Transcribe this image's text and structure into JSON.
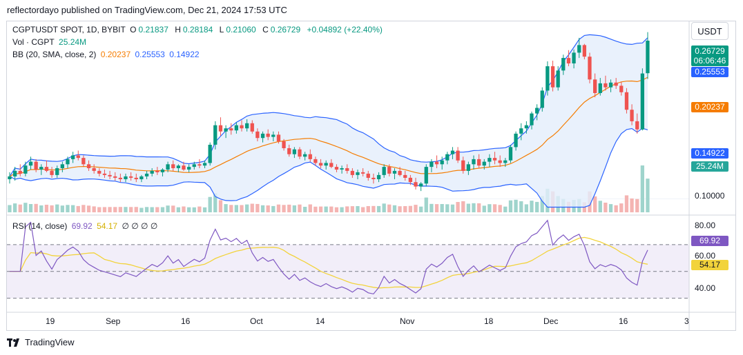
{
  "header": {
    "caption": "reflectordayo published on TradingView.com, Dec 21, 2024 17:53 UTC"
  },
  "legend": {
    "symbol": "CGPTUSDT SPOT, 1D, BYBIT",
    "o_label": "O",
    "o_value": "0.21837",
    "h_label": "H",
    "h_value": "0.28184",
    "l_label": "L",
    "l_value": "0.21060",
    "c_label": "C",
    "c_value": "0.26729",
    "change": "+0.04892 (+22.40%)",
    "vol_label": "Vol · CGPT",
    "vol_value": "25.24M",
    "bb_label": "BB (20, SMA, close, 2)",
    "bb_basis": "0.20237",
    "bb_upper": "0.25553",
    "bb_lower": "0.14922"
  },
  "rsi_legend": {
    "label": "RSI (14, close)",
    "rsi_value": "69.92",
    "ma_value": "54.17",
    "extra": "∅ ∅ ∅ ∅"
  },
  "right_axis": {
    "currency": "USDT",
    "last_price": "0.26729",
    "countdown": "06:06:46",
    "bb_upper_tag": "0.25553",
    "bb_basis_tag": "0.20237",
    "bb_lower_tag": "0.14922",
    "volume_tag": "25.24M",
    "price_tick": "0.10000",
    "rsi_ticks": [
      "80.00",
      "60.00",
      "40.00"
    ],
    "rsi_tag": "69.92",
    "rsi_ma_tag": "54.17"
  },
  "time_axis": [
    "19",
    "Sep",
    "16",
    "Oct",
    "14",
    "Nov",
    "18",
    "Dec",
    "16",
    "3"
  ],
  "footer": {
    "brand": "TradingView"
  },
  "colors": {
    "up": "#089981",
    "up_light": "#26a69a",
    "down": "#ef5350",
    "down_light": "#f28b8b",
    "bb_band": "#2962ff",
    "bb_basis": "#f57c00",
    "bb_fill": "#e3eefb",
    "rsi_line": "#7e57c2",
    "rsi_ma": "#f2d33b",
    "rsi_fill": "#ede7f6"
  },
  "chart_data": {
    "type": "candlestick",
    "symbol": "CGPTUSDT",
    "interval": "1D",
    "y_scale": "log",
    "price_ticks": [
      0.1
    ],
    "rsi_ylim": [
      20,
      90
    ],
    "rsi_bands": [
      70,
      50,
      30
    ],
    "candles": [
      {
        "o": 0.113,
        "h": 0.118,
        "l": 0.11,
        "c": 0.115
      },
      {
        "o": 0.115,
        "h": 0.122,
        "l": 0.112,
        "c": 0.119
      },
      {
        "o": 0.119,
        "h": 0.124,
        "l": 0.115,
        "c": 0.117
      },
      {
        "o": 0.117,
        "h": 0.126,
        "l": 0.115,
        "c": 0.123
      },
      {
        "o": 0.123,
        "h": 0.13,
        "l": 0.12,
        "c": 0.126
      },
      {
        "o": 0.126,
        "h": 0.128,
        "l": 0.118,
        "c": 0.12
      },
      {
        "o": 0.12,
        "h": 0.124,
        "l": 0.116,
        "c": 0.122
      },
      {
        "o": 0.122,
        "h": 0.127,
        "l": 0.118,
        "c": 0.119
      },
      {
        "o": 0.119,
        "h": 0.122,
        "l": 0.114,
        "c": 0.116
      },
      {
        "o": 0.116,
        "h": 0.123,
        "l": 0.114,
        "c": 0.121
      },
      {
        "o": 0.121,
        "h": 0.126,
        "l": 0.118,
        "c": 0.124
      },
      {
        "o": 0.124,
        "h": 0.13,
        "l": 0.121,
        "c": 0.128
      },
      {
        "o": 0.128,
        "h": 0.134,
        "l": 0.125,
        "c": 0.131
      },
      {
        "o": 0.131,
        "h": 0.135,
        "l": 0.127,
        "c": 0.129
      },
      {
        "o": 0.129,
        "h": 0.131,
        "l": 0.122,
        "c": 0.124
      },
      {
        "o": 0.124,
        "h": 0.127,
        "l": 0.119,
        "c": 0.121
      },
      {
        "o": 0.121,
        "h": 0.124,
        "l": 0.117,
        "c": 0.119
      },
      {
        "o": 0.119,
        "h": 0.121,
        "l": 0.115,
        "c": 0.117
      },
      {
        "o": 0.117,
        "h": 0.12,
        "l": 0.114,
        "c": 0.116
      },
      {
        "o": 0.116,
        "h": 0.119,
        "l": 0.113,
        "c": 0.115
      },
      {
        "o": 0.115,
        "h": 0.118,
        "l": 0.112,
        "c": 0.114
      },
      {
        "o": 0.114,
        "h": 0.117,
        "l": 0.111,
        "c": 0.113
      },
      {
        "o": 0.113,
        "h": 0.117,
        "l": 0.111,
        "c": 0.115
      },
      {
        "o": 0.115,
        "h": 0.118,
        "l": 0.112,
        "c": 0.114
      },
      {
        "o": 0.114,
        "h": 0.117,
        "l": 0.111,
        "c": 0.113
      },
      {
        "o": 0.113,
        "h": 0.116,
        "l": 0.111,
        "c": 0.115
      },
      {
        "o": 0.115,
        "h": 0.119,
        "l": 0.113,
        "c": 0.117
      },
      {
        "o": 0.117,
        "h": 0.121,
        "l": 0.115,
        "c": 0.119
      },
      {
        "o": 0.119,
        "h": 0.122,
        "l": 0.116,
        "c": 0.118
      },
      {
        "o": 0.118,
        "h": 0.121,
        "l": 0.115,
        "c": 0.12
      },
      {
        "o": 0.12,
        "h": 0.126,
        "l": 0.118,
        "c": 0.124
      },
      {
        "o": 0.124,
        "h": 0.127,
        "l": 0.119,
        "c": 0.121
      },
      {
        "o": 0.121,
        "h": 0.124,
        "l": 0.118,
        "c": 0.123
      },
      {
        "o": 0.123,
        "h": 0.126,
        "l": 0.119,
        "c": 0.12
      },
      {
        "o": 0.12,
        "h": 0.124,
        "l": 0.118,
        "c": 0.122
      },
      {
        "o": 0.122,
        "h": 0.126,
        "l": 0.12,
        "c": 0.124
      },
      {
        "o": 0.124,
        "h": 0.128,
        "l": 0.121,
        "c": 0.123
      },
      {
        "o": 0.123,
        "h": 0.127,
        "l": 0.121,
        "c": 0.125
      },
      {
        "o": 0.125,
        "h": 0.142,
        "l": 0.123,
        "c": 0.14
      },
      {
        "o": 0.14,
        "h": 0.162,
        "l": 0.136,
        "c": 0.158
      },
      {
        "o": 0.158,
        "h": 0.166,
        "l": 0.148,
        "c": 0.152
      },
      {
        "o": 0.152,
        "h": 0.158,
        "l": 0.146,
        "c": 0.155
      },
      {
        "o": 0.155,
        "h": 0.16,
        "l": 0.149,
        "c": 0.153
      },
      {
        "o": 0.153,
        "h": 0.161,
        "l": 0.15,
        "c": 0.158
      },
      {
        "o": 0.158,
        "h": 0.163,
        "l": 0.152,
        "c": 0.155
      },
      {
        "o": 0.155,
        "h": 0.164,
        "l": 0.152,
        "c": 0.16
      },
      {
        "o": 0.16,
        "h": 0.163,
        "l": 0.15,
        "c": 0.152
      },
      {
        "o": 0.152,
        "h": 0.155,
        "l": 0.143,
        "c": 0.146
      },
      {
        "o": 0.146,
        "h": 0.152,
        "l": 0.142,
        "c": 0.15
      },
      {
        "o": 0.15,
        "h": 0.154,
        "l": 0.144,
        "c": 0.147
      },
      {
        "o": 0.147,
        "h": 0.152,
        "l": 0.143,
        "c": 0.149
      },
      {
        "o": 0.149,
        "h": 0.152,
        "l": 0.141,
        "c": 0.143
      },
      {
        "o": 0.143,
        "h": 0.145,
        "l": 0.135,
        "c": 0.137
      },
      {
        "o": 0.137,
        "h": 0.14,
        "l": 0.13,
        "c": 0.132
      },
      {
        "o": 0.132,
        "h": 0.138,
        "l": 0.129,
        "c": 0.136
      },
      {
        "o": 0.136,
        "h": 0.138,
        "l": 0.128,
        "c": 0.13
      },
      {
        "o": 0.13,
        "h": 0.134,
        "l": 0.127,
        "c": 0.132
      },
      {
        "o": 0.132,
        "h": 0.136,
        "l": 0.126,
        "c": 0.128
      },
      {
        "o": 0.128,
        "h": 0.13,
        "l": 0.123,
        "c": 0.125
      },
      {
        "o": 0.125,
        "h": 0.128,
        "l": 0.121,
        "c": 0.123
      },
      {
        "o": 0.123,
        "h": 0.127,
        "l": 0.12,
        "c": 0.125
      },
      {
        "o": 0.125,
        "h": 0.128,
        "l": 0.121,
        "c": 0.122
      },
      {
        "o": 0.122,
        "h": 0.124,
        "l": 0.118,
        "c": 0.12
      },
      {
        "o": 0.12,
        "h": 0.123,
        "l": 0.117,
        "c": 0.121
      },
      {
        "o": 0.121,
        "h": 0.124,
        "l": 0.117,
        "c": 0.119
      },
      {
        "o": 0.119,
        "h": 0.121,
        "l": 0.114,
        "c": 0.116
      },
      {
        "o": 0.116,
        "h": 0.12,
        "l": 0.113,
        "c": 0.118
      },
      {
        "o": 0.118,
        "h": 0.121,
        "l": 0.115,
        "c": 0.117
      },
      {
        "o": 0.117,
        "h": 0.119,
        "l": 0.112,
        "c": 0.114
      },
      {
        "o": 0.114,
        "h": 0.117,
        "l": 0.11,
        "c": 0.113
      },
      {
        "o": 0.113,
        "h": 0.118,
        "l": 0.111,
        "c": 0.116
      },
      {
        "o": 0.116,
        "h": 0.124,
        "l": 0.114,
        "c": 0.122
      },
      {
        "o": 0.122,
        "h": 0.124,
        "l": 0.115,
        "c": 0.117
      },
      {
        "o": 0.117,
        "h": 0.121,
        "l": 0.113,
        "c": 0.119
      },
      {
        "o": 0.119,
        "h": 0.122,
        "l": 0.115,
        "c": 0.116
      },
      {
        "o": 0.116,
        "h": 0.119,
        "l": 0.112,
        "c": 0.114
      },
      {
        "o": 0.114,
        "h": 0.116,
        "l": 0.109,
        "c": 0.111
      },
      {
        "o": 0.111,
        "h": 0.114,
        "l": 0.106,
        "c": 0.108
      },
      {
        "o": 0.108,
        "h": 0.111,
        "l": 0.105,
        "c": 0.11
      },
      {
        "o": 0.11,
        "h": 0.124,
        "l": 0.108,
        "c": 0.122
      },
      {
        "o": 0.122,
        "h": 0.128,
        "l": 0.118,
        "c": 0.126
      },
      {
        "o": 0.126,
        "h": 0.131,
        "l": 0.121,
        "c": 0.124
      },
      {
        "o": 0.124,
        "h": 0.13,
        "l": 0.12,
        "c": 0.127
      },
      {
        "o": 0.127,
        "h": 0.134,
        "l": 0.124,
        "c": 0.132
      },
      {
        "o": 0.132,
        "h": 0.138,
        "l": 0.128,
        "c": 0.135
      },
      {
        "o": 0.135,
        "h": 0.138,
        "l": 0.125,
        "c": 0.127
      },
      {
        "o": 0.127,
        "h": 0.13,
        "l": 0.117,
        "c": 0.119
      },
      {
        "o": 0.119,
        "h": 0.126,
        "l": 0.116,
        "c": 0.124
      },
      {
        "o": 0.124,
        "h": 0.131,
        "l": 0.12,
        "c": 0.128
      },
      {
        "o": 0.128,
        "h": 0.132,
        "l": 0.121,
        "c": 0.123
      },
      {
        "o": 0.123,
        "h": 0.128,
        "l": 0.12,
        "c": 0.126
      },
      {
        "o": 0.126,
        "h": 0.132,
        "l": 0.122,
        "c": 0.129
      },
      {
        "o": 0.129,
        "h": 0.134,
        "l": 0.124,
        "c": 0.127
      },
      {
        "o": 0.127,
        "h": 0.131,
        "l": 0.122,
        "c": 0.125
      },
      {
        "o": 0.125,
        "h": 0.129,
        "l": 0.122,
        "c": 0.127
      },
      {
        "o": 0.127,
        "h": 0.14,
        "l": 0.125,
        "c": 0.138
      },
      {
        "o": 0.138,
        "h": 0.152,
        "l": 0.135,
        "c": 0.15
      },
      {
        "o": 0.15,
        "h": 0.16,
        "l": 0.144,
        "c": 0.155
      },
      {
        "o": 0.155,
        "h": 0.162,
        "l": 0.15,
        "c": 0.158
      },
      {
        "o": 0.158,
        "h": 0.172,
        "l": 0.154,
        "c": 0.17
      },
      {
        "o": 0.17,
        "h": 0.18,
        "l": 0.163,
        "c": 0.176
      },
      {
        "o": 0.176,
        "h": 0.2,
        "l": 0.172,
        "c": 0.196
      },
      {
        "o": 0.196,
        "h": 0.235,
        "l": 0.19,
        "c": 0.228
      },
      {
        "o": 0.228,
        "h": 0.236,
        "l": 0.195,
        "c": 0.2
      },
      {
        "o": 0.2,
        "h": 0.228,
        "l": 0.196,
        "c": 0.222
      },
      {
        "o": 0.222,
        "h": 0.245,
        "l": 0.216,
        "c": 0.24
      },
      {
        "o": 0.24,
        "h": 0.252,
        "l": 0.228,
        "c": 0.232
      },
      {
        "o": 0.232,
        "h": 0.253,
        "l": 0.225,
        "c": 0.248
      },
      {
        "o": 0.248,
        "h": 0.272,
        "l": 0.24,
        "c": 0.26
      },
      {
        "o": 0.26,
        "h": 0.262,
        "l": 0.238,
        "c": 0.242
      },
      {
        "o": 0.242,
        "h": 0.248,
        "l": 0.205,
        "c": 0.21
      },
      {
        "o": 0.21,
        "h": 0.218,
        "l": 0.188,
        "c": 0.193
      },
      {
        "o": 0.193,
        "h": 0.212,
        "l": 0.19,
        "c": 0.205
      },
      {
        "o": 0.205,
        "h": 0.215,
        "l": 0.196,
        "c": 0.2
      },
      {
        "o": 0.2,
        "h": 0.21,
        "l": 0.194,
        "c": 0.206
      },
      {
        "o": 0.206,
        "h": 0.212,
        "l": 0.198,
        "c": 0.202
      },
      {
        "o": 0.202,
        "h": 0.207,
        "l": 0.19,
        "c": 0.194
      },
      {
        "o": 0.194,
        "h": 0.199,
        "l": 0.17,
        "c": 0.174
      },
      {
        "o": 0.174,
        "h": 0.18,
        "l": 0.158,
        "c": 0.162
      },
      {
        "o": 0.162,
        "h": 0.17,
        "l": 0.15,
        "c": 0.154
      },
      {
        "o": 0.154,
        "h": 0.225,
        "l": 0.153,
        "c": 0.218
      },
      {
        "o": 0.21837,
        "h": 0.28184,
        "l": 0.2106,
        "c": 0.26729
      }
    ],
    "volume_last": "25.24M",
    "bollinger_last": {
      "basis": 0.20237,
      "upper": 0.25553,
      "lower": 0.14922
    },
    "rsi_last": 69.92,
    "rsi_ma_last": 54.17
  }
}
